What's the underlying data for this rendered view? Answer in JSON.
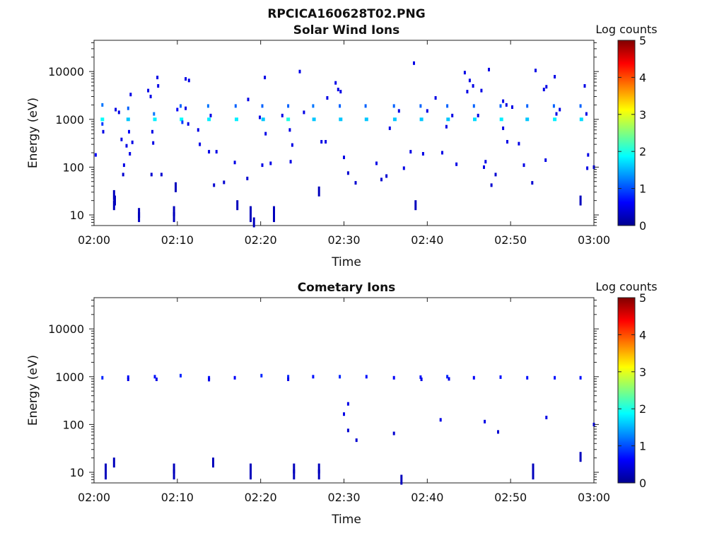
{
  "figure": {
    "title": "RPCICA160628T02.PNG"
  },
  "colorbar": {
    "label": "Log counts",
    "min": 0,
    "max": 5,
    "ticks": [
      "0",
      "1",
      "2",
      "3",
      "4",
      "5"
    ]
  },
  "chart_data": [
    {
      "type": "heatmap",
      "title": "Solar Wind Ions",
      "xlabel": "Time",
      "ylabel": "Energy (eV)",
      "xlim": [
        "02:00",
        "03:00"
      ],
      "ylim": [
        6,
        45000
      ],
      "y_scale": "log",
      "x_ticks": [
        "02:00",
        "02:10",
        "02:20",
        "02:30",
        "02:40",
        "02:50",
        "03:00"
      ],
      "y_ticks": [
        "10",
        "100",
        "1000",
        "10000"
      ],
      "color_scale": "jet, log counts 0-5",
      "points": [
        {
          "t": 0.2,
          "e": 180,
          "c": 0.6
        },
        {
          "t": 1.0,
          "e": 2000,
          "c": 1.2
        },
        {
          "t": 1.0,
          "e": 1000,
          "c": 1.9
        },
        {
          "t": 1.0,
          "e": 800,
          "c": 0.9
        },
        {
          "t": 1.1,
          "e": 550,
          "c": 0.5
        },
        {
          "t": 2.4,
          "e": 26,
          "c": 0.3
        },
        {
          "t": 2.5,
          "e": 20,
          "c": 0.3
        },
        {
          "t": 2.4,
          "e": 16,
          "c": 0.3
        },
        {
          "t": 2.6,
          "e": 1600,
          "c": 0.5
        },
        {
          "t": 3.0,
          "e": 1400,
          "c": 0.5
        },
        {
          "t": 3.3,
          "e": 380,
          "c": 0.5
        },
        {
          "t": 3.5,
          "e": 70,
          "c": 0.4
        },
        {
          "t": 3.6,
          "e": 110,
          "c": 0.5
        },
        {
          "t": 4.1,
          "e": 1700,
          "c": 1.1
        },
        {
          "t": 4.1,
          "e": 1000,
          "c": 1.6
        },
        {
          "t": 4.2,
          "e": 550,
          "c": 0.6
        },
        {
          "t": 3.9,
          "e": 280,
          "c": 0.5
        },
        {
          "t": 4.3,
          "e": 190,
          "c": 0.5
        },
        {
          "t": 4.4,
          "e": 3300,
          "c": 0.5
        },
        {
          "t": 4.6,
          "e": 330,
          "c": 0.5
        },
        {
          "t": 5.4,
          "e": 11,
          "c": 0.3
        },
        {
          "t": 5.4,
          "e": 9,
          "c": 0.3
        },
        {
          "t": 6.5,
          "e": 4000,
          "c": 0.5
        },
        {
          "t": 6.8,
          "e": 3000,
          "c": 0.5
        },
        {
          "t": 7.2,
          "e": 1300,
          "c": 1.2
        },
        {
          "t": 7.3,
          "e": 1000,
          "c": 1.8
        },
        {
          "t": 7.0,
          "e": 550,
          "c": 0.5
        },
        {
          "t": 7.1,
          "e": 320,
          "c": 0.5
        },
        {
          "t": 6.9,
          "e": 70,
          "c": 0.4
        },
        {
          "t": 7.6,
          "e": 7500,
          "c": 0.5
        },
        {
          "t": 7.7,
          "e": 5000,
          "c": 0.5
        },
        {
          "t": 8.1,
          "e": 70,
          "c": 0.4
        },
        {
          "t": 9.6,
          "e": 12,
          "c": 0.3
        },
        {
          "t": 9.6,
          "e": 9,
          "c": 0.3
        },
        {
          "t": 9.8,
          "e": 38,
          "c": 0.3
        },
        {
          "t": 10.0,
          "e": 1600,
          "c": 0.6
        },
        {
          "t": 10.4,
          "e": 1900,
          "c": 1.1
        },
        {
          "t": 10.5,
          "e": 1000,
          "c": 1.9
        },
        {
          "t": 10.6,
          "e": 870,
          "c": 0.9
        },
        {
          "t": 11.0,
          "e": 7000,
          "c": 0.5
        },
        {
          "t": 11.4,
          "e": 6500,
          "c": 0.5
        },
        {
          "t": 11.3,
          "e": 800,
          "c": 0.5
        },
        {
          "t": 11.0,
          "e": 1700,
          "c": 0.5
        },
        {
          "t": 12.5,
          "e": 600,
          "c": 0.5
        },
        {
          "t": 12.7,
          "e": 300,
          "c": 0.5
        },
        {
          "t": 13.7,
          "e": 1900,
          "c": 1.2
        },
        {
          "t": 13.8,
          "e": 1000,
          "c": 1.8
        },
        {
          "t": 14.0,
          "e": 1200,
          "c": 0.5
        },
        {
          "t": 13.8,
          "e": 210,
          "c": 0.5
        },
        {
          "t": 14.7,
          "e": 210,
          "c": 0.5
        },
        {
          "t": 14.4,
          "e": 42,
          "c": 0.4
        },
        {
          "t": 15.6,
          "e": 48,
          "c": 0.4
        },
        {
          "t": 16.9,
          "e": 125,
          "c": 0.5
        },
        {
          "t": 17.0,
          "e": 1900,
          "c": 1.1
        },
        {
          "t": 17.1,
          "e": 1000,
          "c": 1.8
        },
        {
          "t": 17.2,
          "e": 16,
          "c": 0.3
        },
        {
          "t": 18.5,
          "e": 2600,
          "c": 0.5
        },
        {
          "t": 18.4,
          "e": 58,
          "c": 0.4
        },
        {
          "t": 18.8,
          "e": 12,
          "c": 0.3
        },
        {
          "t": 18.8,
          "e": 9,
          "c": 0.3
        },
        {
          "t": 19.2,
          "e": 7,
          "c": 0.3
        },
        {
          "t": 19.9,
          "e": 1100,
          "c": 0.5
        },
        {
          "t": 20.2,
          "e": 1900,
          "c": 1.1
        },
        {
          "t": 20.3,
          "e": 1000,
          "c": 1.6
        },
        {
          "t": 20.5,
          "e": 7500,
          "c": 0.5
        },
        {
          "t": 20.2,
          "e": 110,
          "c": 0.5
        },
        {
          "t": 20.6,
          "e": 500,
          "c": 0.5
        },
        {
          "t": 21.2,
          "e": 120,
          "c": 0.5
        },
        {
          "t": 21.6,
          "e": 12,
          "c": 0.3
        },
        {
          "t": 21.6,
          "e": 9,
          "c": 0.3
        },
        {
          "t": 22.6,
          "e": 1200,
          "c": 0.5
        },
        {
          "t": 23.3,
          "e": 1900,
          "c": 1.1
        },
        {
          "t": 23.3,
          "e": 1000,
          "c": 2.0
        },
        {
          "t": 23.5,
          "e": 600,
          "c": 0.5
        },
        {
          "t": 23.6,
          "e": 130,
          "c": 0.5
        },
        {
          "t": 23.8,
          "e": 290,
          "c": 0.5
        },
        {
          "t": 24.7,
          "e": 10000,
          "c": 0.5
        },
        {
          "t": 25.2,
          "e": 1400,
          "c": 0.5
        },
        {
          "t": 26.3,
          "e": 1900,
          "c": 1.2
        },
        {
          "t": 26.4,
          "e": 1000,
          "c": 1.6
        },
        {
          "t": 27.3,
          "e": 340,
          "c": 0.5
        },
        {
          "t": 27.8,
          "e": 340,
          "c": 0.5
        },
        {
          "t": 27.0,
          "e": 31,
          "c": 0.3
        },
        {
          "t": 28.0,
          "e": 2800,
          "c": 0.5
        },
        {
          "t": 29.0,
          "e": 5800,
          "c": 0.5
        },
        {
          "t": 29.3,
          "e": 4200,
          "c": 0.5
        },
        {
          "t": 29.6,
          "e": 3800,
          "c": 0.5
        },
        {
          "t": 29.5,
          "e": 1900,
          "c": 1.1
        },
        {
          "t": 29.6,
          "e": 1000,
          "c": 1.6
        },
        {
          "t": 30.0,
          "e": 160,
          "c": 0.5
        },
        {
          "t": 30.5,
          "e": 75,
          "c": 0.4
        },
        {
          "t": 31.4,
          "e": 47,
          "c": 0.4
        },
        {
          "t": 32.6,
          "e": 1900,
          "c": 1.1
        },
        {
          "t": 32.7,
          "e": 1000,
          "c": 1.6
        },
        {
          "t": 33.9,
          "e": 120,
          "c": 0.5
        },
        {
          "t": 34.5,
          "e": 55,
          "c": 0.4
        },
        {
          "t": 35.1,
          "e": 65,
          "c": 0.4
        },
        {
          "t": 35.5,
          "e": 650,
          "c": 0.5
        },
        {
          "t": 36.0,
          "e": 1900,
          "c": 1.1
        },
        {
          "t": 36.1,
          "e": 1000,
          "c": 1.6
        },
        {
          "t": 36.6,
          "e": 1500,
          "c": 0.5
        },
        {
          "t": 37.2,
          "e": 95,
          "c": 0.5
        },
        {
          "t": 38.0,
          "e": 210,
          "c": 0.5
        },
        {
          "t": 38.4,
          "e": 15000,
          "c": 0.5
        },
        {
          "t": 38.6,
          "e": 16,
          "c": 0.3
        },
        {
          "t": 39.2,
          "e": 1900,
          "c": 1.1
        },
        {
          "t": 39.3,
          "e": 1000,
          "c": 1.6
        },
        {
          "t": 39.5,
          "e": 190,
          "c": 0.5
        },
        {
          "t": 40.0,
          "e": 1500,
          "c": 0.5
        },
        {
          "t": 41.0,
          "e": 2800,
          "c": 0.5
        },
        {
          "t": 41.8,
          "e": 200,
          "c": 0.5
        },
        {
          "t": 42.4,
          "e": 1900,
          "c": 1.1
        },
        {
          "t": 42.5,
          "e": 1000,
          "c": 1.6
        },
        {
          "t": 42.3,
          "e": 700,
          "c": 0.5
        },
        {
          "t": 43.0,
          "e": 1200,
          "c": 0.5
        },
        {
          "t": 43.5,
          "e": 115,
          "c": 0.5
        },
        {
          "t": 44.5,
          "e": 9500,
          "c": 0.5
        },
        {
          "t": 44.8,
          "e": 3800,
          "c": 0.5
        },
        {
          "t": 45.1,
          "e": 6500,
          "c": 0.5
        },
        {
          "t": 45.5,
          "e": 5000,
          "c": 0.5
        },
        {
          "t": 45.6,
          "e": 1900,
          "c": 1.1
        },
        {
          "t": 45.7,
          "e": 1000,
          "c": 1.7
        },
        {
          "t": 46.1,
          "e": 1200,
          "c": 0.5
        },
        {
          "t": 46.5,
          "e": 4000,
          "c": 0.5
        },
        {
          "t": 46.8,
          "e": 100,
          "c": 0.5
        },
        {
          "t": 47.0,
          "e": 130,
          "c": 0.5
        },
        {
          "t": 47.4,
          "e": 11000,
          "c": 0.5
        },
        {
          "t": 47.7,
          "e": 42,
          "c": 0.4
        },
        {
          "t": 48.2,
          "e": 70,
          "c": 0.4
        },
        {
          "t": 48.8,
          "e": 1900,
          "c": 1.1
        },
        {
          "t": 48.9,
          "e": 1000,
          "c": 1.8
        },
        {
          "t": 49.1,
          "e": 2400,
          "c": 0.5
        },
        {
          "t": 49.1,
          "e": 650,
          "c": 0.5
        },
        {
          "t": 49.5,
          "e": 2000,
          "c": 0.5
        },
        {
          "t": 49.6,
          "e": 340,
          "c": 0.5
        },
        {
          "t": 50.2,
          "e": 1800,
          "c": 0.5
        },
        {
          "t": 51.0,
          "e": 310,
          "c": 0.5
        },
        {
          "t": 51.6,
          "e": 110,
          "c": 0.5
        },
        {
          "t": 52.0,
          "e": 1900,
          "c": 1.1
        },
        {
          "t": 52.0,
          "e": 1000,
          "c": 1.6
        },
        {
          "t": 52.6,
          "e": 47,
          "c": 0.4
        },
        {
          "t": 53.0,
          "e": 10500,
          "c": 0.5
        },
        {
          "t": 54.0,
          "e": 4200,
          "c": 0.5
        },
        {
          "t": 54.3,
          "e": 4800,
          "c": 0.5
        },
        {
          "t": 54.2,
          "e": 140,
          "c": 0.5
        },
        {
          "t": 55.2,
          "e": 1900,
          "c": 1.1
        },
        {
          "t": 55.3,
          "e": 1000,
          "c": 1.8
        },
        {
          "t": 55.5,
          "e": 1300,
          "c": 0.5
        },
        {
          "t": 55.9,
          "e": 1600,
          "c": 0.5
        },
        {
          "t": 55.3,
          "e": 7800,
          "c": 0.5
        },
        {
          "t": 58.4,
          "e": 1900,
          "c": 1.1
        },
        {
          "t": 58.5,
          "e": 1000,
          "c": 1.7
        },
        {
          "t": 58.9,
          "e": 5000,
          "c": 0.5
        },
        {
          "t": 59.1,
          "e": 1300,
          "c": 0.5
        },
        {
          "t": 59.3,
          "e": 180,
          "c": 0.5
        },
        {
          "t": 59.2,
          "e": 95,
          "c": 0.5
        },
        {
          "t": 58.4,
          "e": 20,
          "c": 0.3
        },
        {
          "t": 60.0,
          "e": 100,
          "c": 0.4
        }
      ]
    },
    {
      "type": "heatmap",
      "title": "Cometary Ions",
      "xlabel": "Time",
      "ylabel": "Energy (eV)",
      "xlim": [
        "02:00",
        "03:00"
      ],
      "ylim": [
        6,
        45000
      ],
      "y_scale": "log",
      "x_ticks": [
        "02:00",
        "02:10",
        "02:20",
        "02:30",
        "02:40",
        "02:50",
        "03:00"
      ],
      "y_ticks": [
        "10",
        "100",
        "1000",
        "10000"
      ],
      "color_scale": "jet, log counts 0-5",
      "points": [
        {
          "t": 1.0,
          "e": 950,
          "c": 0.8
        },
        {
          "t": 1.4,
          "e": 12,
          "c": 0.3
        },
        {
          "t": 1.4,
          "e": 9,
          "c": 0.3
        },
        {
          "t": 2.4,
          "e": 16,
          "c": 0.3
        },
        {
          "t": 4.1,
          "e": 980,
          "c": 0.7
        },
        {
          "t": 4.1,
          "e": 880,
          "c": 0.5
        },
        {
          "t": 7.3,
          "e": 1000,
          "c": 0.7
        },
        {
          "t": 7.5,
          "e": 880,
          "c": 0.5
        },
        {
          "t": 9.6,
          "e": 12,
          "c": 0.3
        },
        {
          "t": 9.6,
          "e": 9,
          "c": 0.3
        },
        {
          "t": 10.4,
          "e": 1050,
          "c": 0.8
        },
        {
          "t": 13.8,
          "e": 950,
          "c": 0.7
        },
        {
          "t": 13.8,
          "e": 870,
          "c": 0.5
        },
        {
          "t": 14.3,
          "e": 16,
          "c": 0.3
        },
        {
          "t": 16.9,
          "e": 950,
          "c": 0.6
        },
        {
          "t": 18.8,
          "e": 12,
          "c": 0.3
        },
        {
          "t": 18.8,
          "e": 9,
          "c": 0.3
        },
        {
          "t": 20.1,
          "e": 1050,
          "c": 0.8
        },
        {
          "t": 23.3,
          "e": 1000,
          "c": 0.8
        },
        {
          "t": 23.3,
          "e": 880,
          "c": 0.5
        },
        {
          "t": 24.0,
          "e": 12,
          "c": 0.3
        },
        {
          "t": 24.0,
          "e": 9,
          "c": 0.3
        },
        {
          "t": 26.3,
          "e": 1000,
          "c": 0.7
        },
        {
          "t": 27.0,
          "e": 12,
          "c": 0.3
        },
        {
          "t": 27.0,
          "e": 9,
          "c": 0.3
        },
        {
          "t": 29.5,
          "e": 1000,
          "c": 0.8
        },
        {
          "t": 30.5,
          "e": 270,
          "c": 0.5
        },
        {
          "t": 30.0,
          "e": 165,
          "c": 0.5
        },
        {
          "t": 30.5,
          "e": 75,
          "c": 0.4
        },
        {
          "t": 31.5,
          "e": 47,
          "c": 0.4
        },
        {
          "t": 32.7,
          "e": 1000,
          "c": 0.7
        },
        {
          "t": 36.0,
          "e": 950,
          "c": 0.6
        },
        {
          "t": 36.0,
          "e": 65,
          "c": 0.4
        },
        {
          "t": 36.9,
          "e": 7,
          "c": 0.3
        },
        {
          "t": 39.2,
          "e": 980,
          "c": 0.7
        },
        {
          "t": 39.3,
          "e": 880,
          "c": 0.5
        },
        {
          "t": 41.6,
          "e": 125,
          "c": 0.5
        },
        {
          "t": 42.4,
          "e": 1000,
          "c": 0.8
        },
        {
          "t": 42.6,
          "e": 900,
          "c": 0.5
        },
        {
          "t": 45.6,
          "e": 950,
          "c": 0.6
        },
        {
          "t": 46.9,
          "e": 115,
          "c": 0.5
        },
        {
          "t": 48.8,
          "e": 980,
          "c": 0.7
        },
        {
          "t": 48.5,
          "e": 70,
          "c": 0.4
        },
        {
          "t": 52.0,
          "e": 950,
          "c": 0.7
        },
        {
          "t": 52.7,
          "e": 12,
          "c": 0.3
        },
        {
          "t": 52.7,
          "e": 9,
          "c": 0.3
        },
        {
          "t": 54.3,
          "e": 140,
          "c": 0.5
        },
        {
          "t": 55.3,
          "e": 950,
          "c": 0.7
        },
        {
          "t": 58.4,
          "e": 950,
          "c": 0.7
        },
        {
          "t": 58.4,
          "e": 21,
          "c": 0.3
        },
        {
          "t": 60.0,
          "e": 100,
          "c": 0.4
        }
      ]
    }
  ]
}
